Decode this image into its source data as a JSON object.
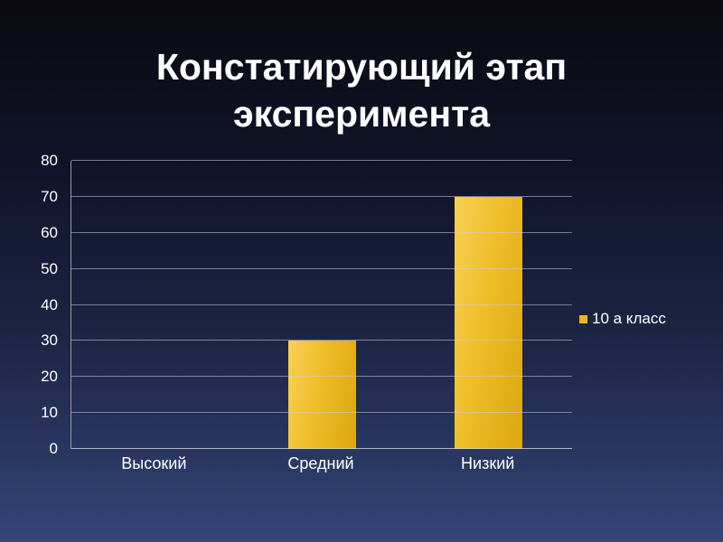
{
  "slide": {
    "title": "Констатирующий этап эксперимента"
  },
  "chart_data": {
    "type": "bar",
    "title": "Констатирующий этап эксперимента",
    "categories": [
      "Высокий",
      "Средний",
      "Низкий"
    ],
    "series": [
      {
        "name": "10 а класс",
        "values": [
          0,
          30,
          70
        ]
      }
    ],
    "xlabel": "",
    "ylabel": "",
    "ylim": [
      0,
      80
    ],
    "ytick_step": 10,
    "grid": true,
    "legend_position": "right",
    "colors": {
      "bar": "#e9b820",
      "text": "#ffffff",
      "gridline": "#c8c8d2",
      "background_top": "#0a0a10",
      "background_bottom": "#36457a"
    }
  }
}
